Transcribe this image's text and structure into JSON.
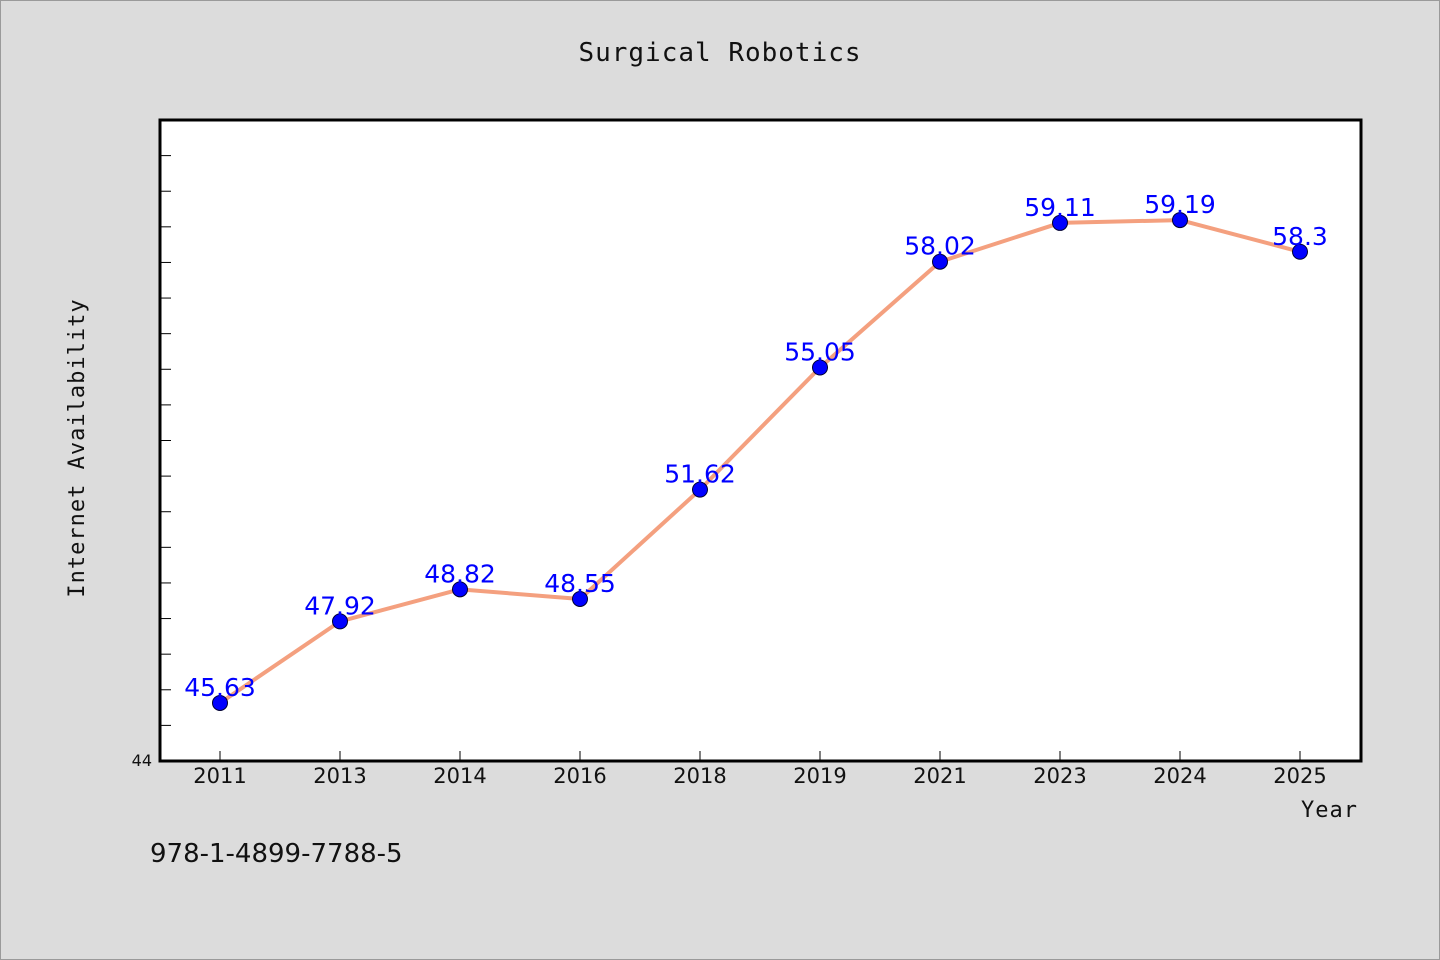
{
  "chart_data": {
    "type": "line",
    "title": "Surgical Robotics",
    "xlabel": "Year",
    "ylabel": "Internet Availability",
    "categories": [
      "2011",
      "2013",
      "2014",
      "2016",
      "2018",
      "2019",
      "2021",
      "2023",
      "2024",
      "2025"
    ],
    "series": [
      {
        "values": [
          45.63,
          47.92,
          48.82,
          48.55,
          51.62,
          55.05,
          58.02,
          59.11,
          59.19,
          58.3
        ],
        "labels": [
          "45.63",
          "47.92",
          "48.82",
          "48.55",
          "51.62",
          "55.05",
          "58.02",
          "59.11",
          "59.19",
          "58.3"
        ],
        "line_color": "#f4a07f",
        "marker_color": "#0000ff"
      }
    ],
    "ylim": [
      44,
      62
    ],
    "y_min_tick_label": "44",
    "y_minor_tick_step": 1,
    "grid": false,
    "legend": "none"
  },
  "footer": {
    "code": "978-1-4899-7788-5"
  }
}
